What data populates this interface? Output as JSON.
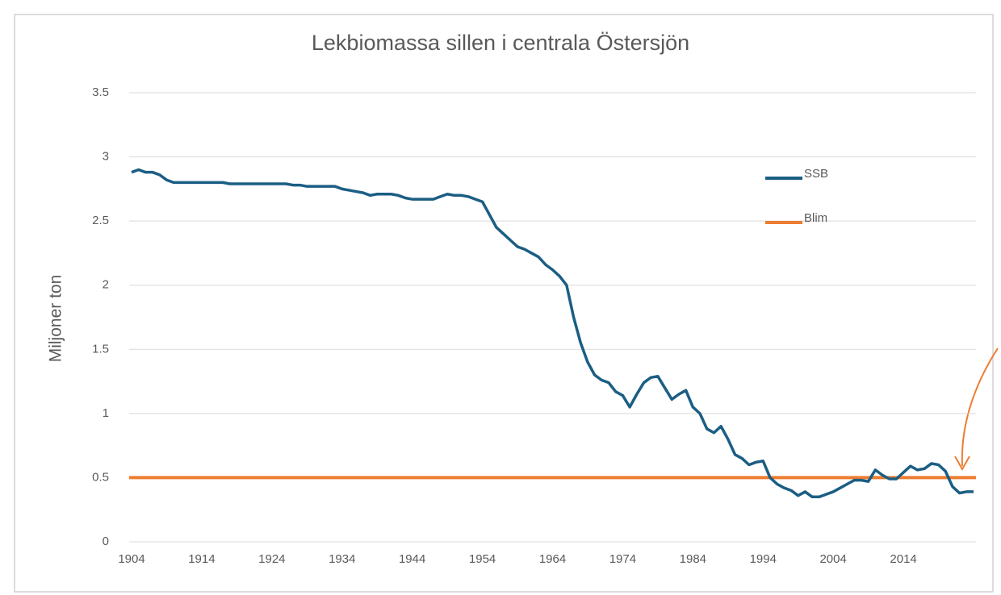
{
  "chart_data": {
    "type": "line",
    "title": "Lekbiomassa sillen i centrala Östersjön",
    "ylabel": "Miljoner ton",
    "x": [
      1904,
      1905,
      1906,
      1907,
      1908,
      1909,
      1910,
      1911,
      1912,
      1913,
      1914,
      1915,
      1916,
      1917,
      1918,
      1919,
      1920,
      1921,
      1922,
      1923,
      1924,
      1925,
      1926,
      1927,
      1928,
      1929,
      1930,
      1931,
      1932,
      1933,
      1934,
      1935,
      1936,
      1937,
      1938,
      1939,
      1940,
      1941,
      1942,
      1943,
      1944,
      1945,
      1946,
      1947,
      1948,
      1949,
      1950,
      1951,
      1952,
      1953,
      1954,
      1955,
      1956,
      1957,
      1958,
      1959,
      1960,
      1961,
      1962,
      1963,
      1964,
      1965,
      1966,
      1967,
      1968,
      1969,
      1970,
      1971,
      1972,
      1973,
      1974,
      1975,
      1976,
      1977,
      1978,
      1979,
      1980,
      1981,
      1982,
      1983,
      1984,
      1985,
      1986,
      1987,
      1988,
      1989,
      1990,
      1991,
      1992,
      1993,
      1994,
      1995,
      1996,
      1997,
      1998,
      1999,
      2000,
      2001,
      2002,
      2003,
      2004,
      2005,
      2006,
      2007,
      2008,
      2009,
      2010,
      2011,
      2012,
      2013,
      2014,
      2015,
      2016,
      2017,
      2018,
      2019,
      2020,
      2021,
      2022,
      2023,
      2024
    ],
    "series": [
      {
        "name": "SSB",
        "color": "#1b5e84",
        "values": [
          2.88,
          2.9,
          2.88,
          2.88,
          2.86,
          2.82,
          2.8,
          2.8,
          2.8,
          2.8,
          2.8,
          2.8,
          2.8,
          2.8,
          2.79,
          2.79,
          2.79,
          2.79,
          2.79,
          2.79,
          2.79,
          2.79,
          2.79,
          2.78,
          2.78,
          2.77,
          2.77,
          2.77,
          2.77,
          2.77,
          2.75,
          2.74,
          2.73,
          2.72,
          2.7,
          2.71,
          2.71,
          2.71,
          2.7,
          2.68,
          2.67,
          2.67,
          2.67,
          2.67,
          2.69,
          2.71,
          2.7,
          2.7,
          2.69,
          2.67,
          2.65,
          2.55,
          2.45,
          2.4,
          2.35,
          2.3,
          2.28,
          2.25,
          2.22,
          2.16,
          2.12,
          2.07,
          2.0,
          1.75,
          1.55,
          1.4,
          1.3,
          1.26,
          1.24,
          1.17,
          1.14,
          1.05,
          1.15,
          1.24,
          1.28,
          1.29,
          1.2,
          1.11,
          1.15,
          1.18,
          1.05,
          1.0,
          0.88,
          0.85,
          0.9,
          0.8,
          0.68,
          0.65,
          0.6,
          0.62,
          0.63,
          0.5,
          0.45,
          0.42,
          0.4,
          0.36,
          0.39,
          0.35,
          0.35,
          0.37,
          0.39,
          0.42,
          0.45,
          0.48,
          0.48,
          0.47,
          0.56,
          0.52,
          0.49,
          0.49,
          0.54,
          0.59,
          0.56,
          0.57,
          0.61,
          0.6,
          0.55,
          0.43,
          0.38,
          0.39,
          0.39
        ]
      }
    ],
    "reference_lines": [
      {
        "name": "Blim",
        "value": 0.5,
        "color": "#ed7d31"
      }
    ],
    "xlim": [
      1904,
      2024
    ],
    "xticks": [
      1904,
      1914,
      1924,
      1934,
      1944,
      1954,
      1964,
      1974,
      1984,
      1994,
      2004,
      2014
    ],
    "ylim": [
      0,
      3.5
    ],
    "yticks": [
      0,
      0.5,
      1,
      1.5,
      2,
      2.5,
      3,
      3.5
    ],
    "grid": true,
    "legend": "upper right"
  }
}
